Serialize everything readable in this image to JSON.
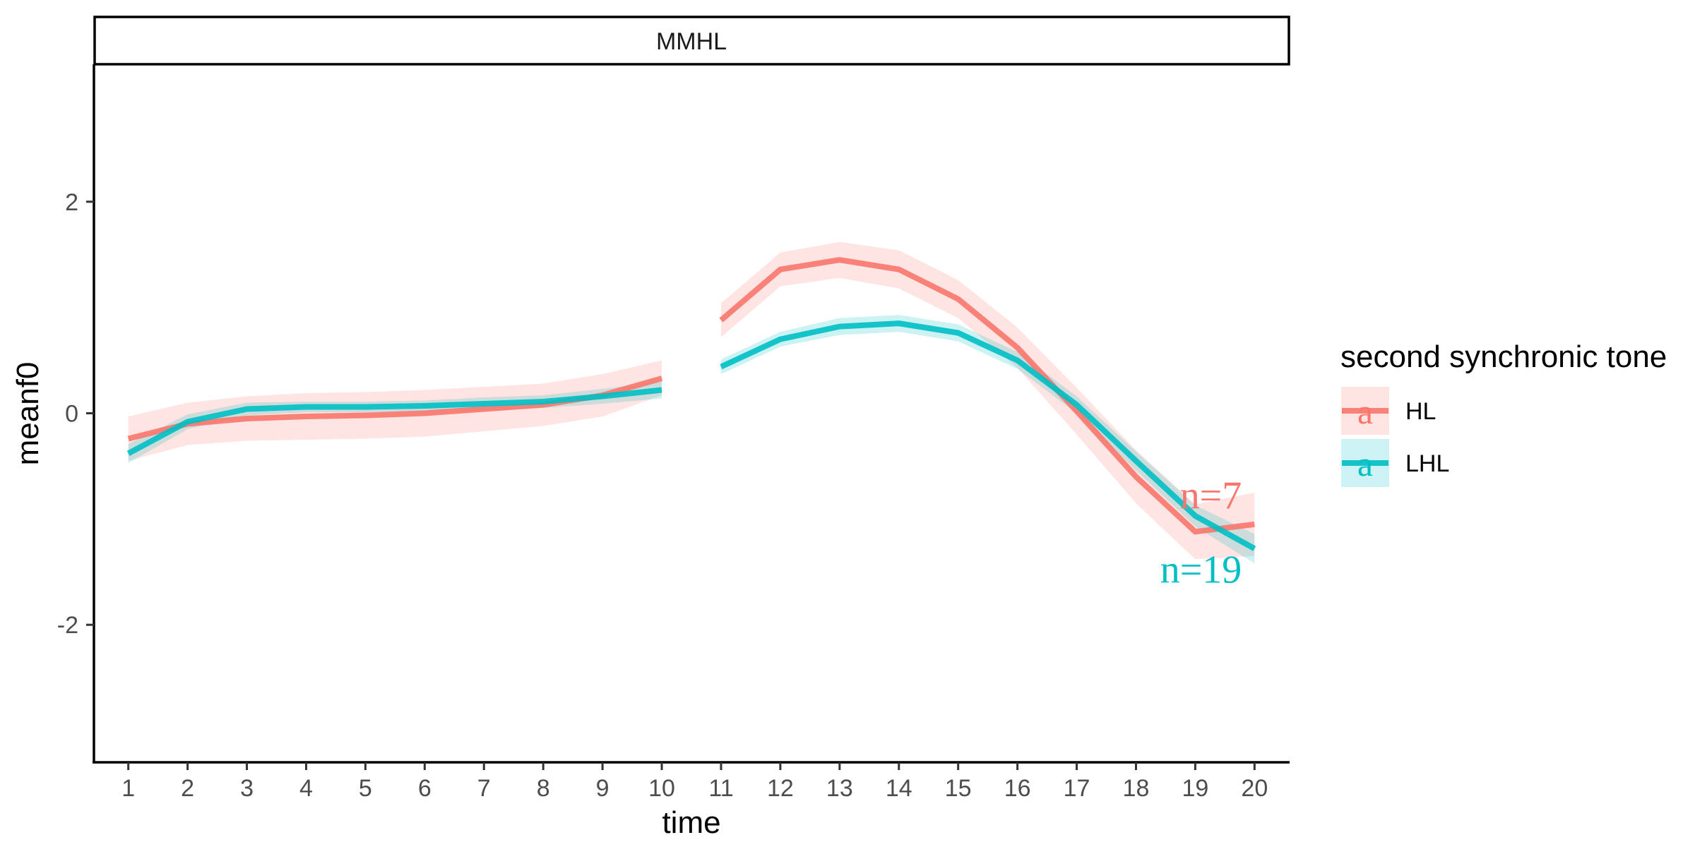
{
  "chart_data": {
    "type": "line",
    "facet_strip": "MMHL",
    "xlabel": "time",
    "ylabel": "meanf0",
    "x": [
      1,
      2,
      3,
      4,
      5,
      6,
      7,
      8,
      9,
      10,
      11,
      12,
      13,
      14,
      15,
      16,
      17,
      18,
      19,
      20
    ],
    "xlim": [
      0.42,
      20.58
    ],
    "ylim": [
      -3.3,
      3.3
    ],
    "x_ticks": [
      "1",
      "2",
      "3",
      "4",
      "5",
      "6",
      "7",
      "8",
      "9",
      "10",
      "11",
      "12",
      "13",
      "14",
      "15",
      "16",
      "17",
      "18",
      "19",
      "20"
    ],
    "y_ticks": [
      -2,
      0,
      2
    ],
    "y_tick_labels": [
      "-2",
      "0",
      "2"
    ],
    "gap_between": [
      10,
      11
    ],
    "grid": false,
    "legend": {
      "title": "second synchronic tone",
      "position": "right",
      "key_glyph": "a"
    },
    "series": [
      {
        "name": "HL",
        "color": "#F8766D",
        "ribbon_color": "#F8766D",
        "values": [
          -0.24,
          -0.1,
          -0.05,
          -0.03,
          -0.02,
          0.0,
          0.04,
          0.08,
          0.17,
          0.33,
          0.88,
          1.36,
          1.45,
          1.36,
          1.08,
          0.62,
          0.02,
          -0.6,
          -1.12,
          -1.05
        ],
        "lower": [
          -0.45,
          -0.3,
          -0.26,
          -0.25,
          -0.24,
          -0.22,
          -0.17,
          -0.12,
          -0.03,
          0.17,
          0.72,
          1.2,
          1.28,
          1.18,
          0.9,
          0.43,
          -0.2,
          -0.85,
          -1.38,
          -1.35
        ],
        "upper": [
          -0.03,
          0.1,
          0.16,
          0.19,
          0.2,
          0.22,
          0.25,
          0.28,
          0.37,
          0.5,
          1.04,
          1.52,
          1.62,
          1.54,
          1.26,
          0.81,
          0.24,
          -0.35,
          -0.86,
          -0.75
        ],
        "annotation": "n=7"
      },
      {
        "name": "LHL",
        "color": "#00BFC4",
        "ribbon_color": "#00BFC4",
        "values": [
          -0.38,
          -0.08,
          0.04,
          0.06,
          0.06,
          0.07,
          0.09,
          0.11,
          0.16,
          0.22,
          0.44,
          0.7,
          0.82,
          0.85,
          0.76,
          0.5,
          0.08,
          -0.45,
          -0.97,
          -1.28
        ],
        "lower": [
          -0.47,
          -0.15,
          -0.02,
          0.01,
          0.01,
          0.02,
          0.03,
          0.05,
          0.09,
          0.14,
          0.37,
          0.63,
          0.74,
          0.77,
          0.68,
          0.42,
          0.0,
          -0.54,
          -1.07,
          -1.42
        ],
        "upper": [
          -0.29,
          -0.01,
          0.1,
          0.11,
          0.11,
          0.12,
          0.15,
          0.17,
          0.23,
          0.3,
          0.51,
          0.77,
          0.9,
          0.93,
          0.84,
          0.58,
          0.16,
          -0.36,
          -0.87,
          -1.14
        ],
        "annotation": "n=19"
      }
    ]
  }
}
